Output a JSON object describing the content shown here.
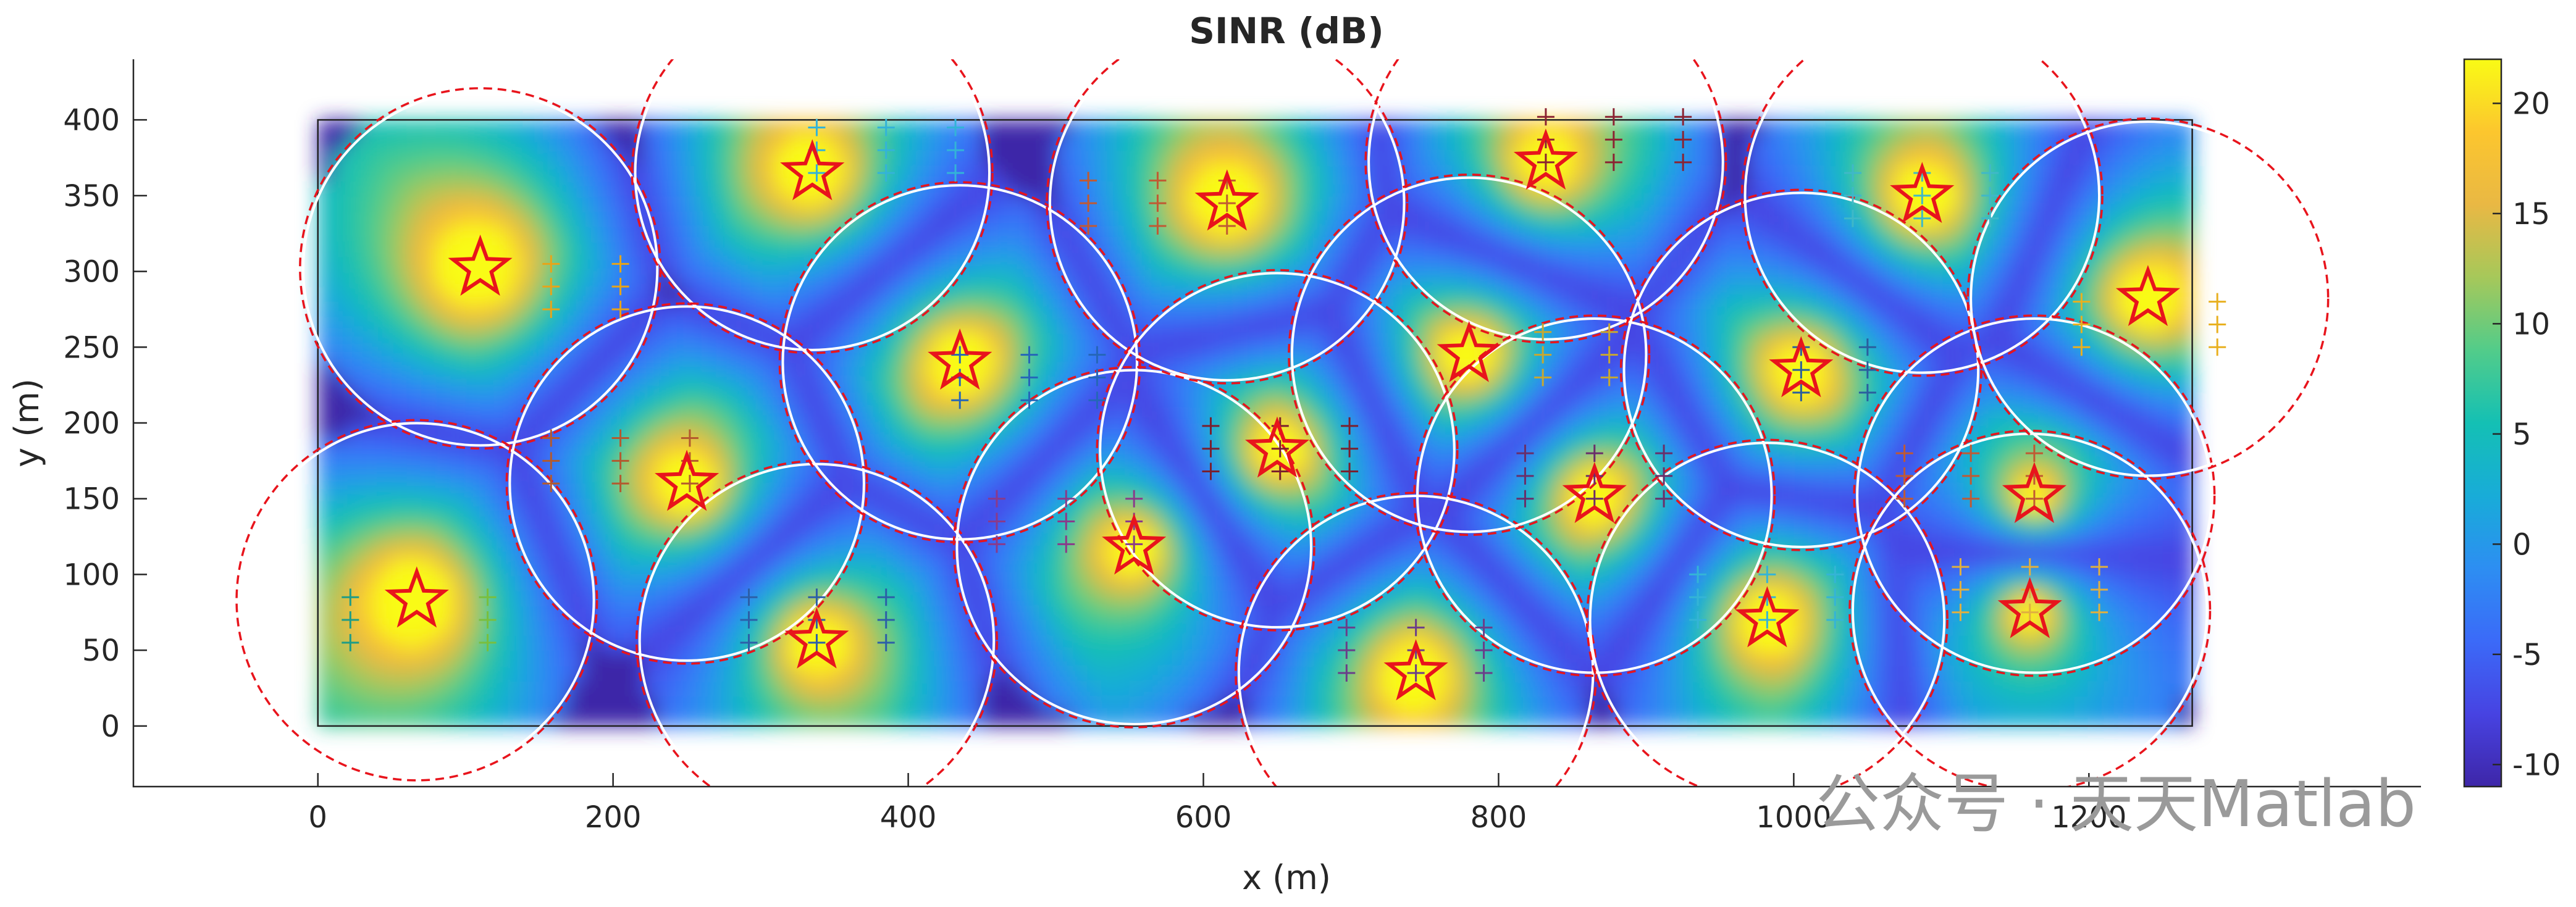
{
  "chart_data": {
    "type": "heatmap",
    "title": "SINR (dB)",
    "xlabel": "x (m)",
    "ylabel": "y (m)",
    "xlim": [
      -125,
      1425
    ],
    "ylim": [
      -40,
      440
    ],
    "xticks": [
      0,
      200,
      400,
      600,
      800,
      1000,
      1200
    ],
    "yticks": [
      0,
      50,
      100,
      150,
      200,
      250,
      300,
      350,
      400
    ],
    "area_bounds": {
      "x": [
        0,
        1270
      ],
      "y": [
        0,
        400
      ]
    },
    "colorbar": {
      "min": -11,
      "max": 22,
      "ticks": [
        -10,
        -5,
        0,
        5,
        10,
        15,
        20
      ],
      "colormap": "parula",
      "colormap_stops": [
        "#3e26a8",
        "#4743e2",
        "#3b6af8",
        "#2d8ef2",
        "#18acd8",
        "#14c0b4",
        "#52cc8a",
        "#a6c85a",
        "#e9b844",
        "#fcc62e",
        "#f9fb15"
      ]
    },
    "coverage_radius_m": 120,
    "access_points": [
      {
        "x": 110,
        "y": 302
      },
      {
        "x": 67,
        "y": 83
      },
      {
        "x": 335,
        "y": 365
      },
      {
        "x": 250,
        "y": 160
      },
      {
        "x": 338,
        "y": 56
      },
      {
        "x": 435,
        "y": 240
      },
      {
        "x": 553,
        "y": 118
      },
      {
        "x": 616,
        "y": 345
      },
      {
        "x": 650,
        "y": 182
      },
      {
        "x": 744,
        "y": 35
      },
      {
        "x": 780,
        "y": 245
      },
      {
        "x": 832,
        "y": 372
      },
      {
        "x": 865,
        "y": 152
      },
      {
        "x": 982,
        "y": 70
      },
      {
        "x": 1005,
        "y": 235
      },
      {
        "x": 1087,
        "y": 350
      },
      {
        "x": 1160,
        "y": 76
      },
      {
        "x": 1163,
        "y": 152
      },
      {
        "x": 1240,
        "y": 282
      }
    ],
    "client_groups": [
      {
        "x": 22,
        "y": [
          55,
          70,
          85
        ],
        "color": "#1e9c86"
      },
      {
        "x": 115,
        "y": [
          55,
          70,
          85
        ],
        "color": "#79bf3e"
      },
      {
        "x": 158,
        "y": [
          275,
          290,
          305
        ],
        "color": "#e8a419"
      },
      {
        "x": 205,
        "y": [
          275,
          290,
          305
        ],
        "color": "#e8a419"
      },
      {
        "x": 158,
        "y": [
          160,
          175,
          190
        ],
        "color": "#b35a2e"
      },
      {
        "x": 205,
        "y": [
          160,
          175,
          190
        ],
        "color": "#b35a2e"
      },
      {
        "x": 252,
        "y": [
          160,
          175,
          190
        ],
        "color": "#b35a2e"
      },
      {
        "x": 292,
        "y": [
          55,
          70,
          85
        ],
        "color": "#2c5fa8"
      },
      {
        "x": 338,
        "y": [
          55,
          70,
          85
        ],
        "color": "#2c5fa8"
      },
      {
        "x": 385,
        "y": [
          55,
          70,
          85
        ],
        "color": "#2c5fa8"
      },
      {
        "x": 338,
        "y": [
          365,
          380,
          395
        ],
        "color": "#33b3d8"
      },
      {
        "x": 385,
        "y": [
          365,
          380,
          395
        ],
        "color": "#33b3d8"
      },
      {
        "x": 432,
        "y": [
          365,
          380,
          395
        ],
        "color": "#33b3d8"
      },
      {
        "x": 435,
        "y": [
          215,
          230,
          245
        ],
        "color": "#2566b8"
      },
      {
        "x": 482,
        "y": [
          215,
          230,
          245
        ],
        "color": "#2566b8"
      },
      {
        "x": 528,
        "y": [
          215,
          230,
          245
        ],
        "color": "#2566b8"
      },
      {
        "x": 460,
        "y": [
          120,
          135,
          150
        ],
        "color": "#8a3a8a"
      },
      {
        "x": 507,
        "y": [
          120,
          135,
          150
        ],
        "color": "#8a3a8a"
      },
      {
        "x": 553,
        "y": [
          120,
          135,
          150
        ],
        "color": "#8a3a8a"
      },
      {
        "x": 522,
        "y": [
          330,
          345,
          360
        ],
        "color": "#c05a33"
      },
      {
        "x": 569,
        "y": [
          330,
          345,
          360
        ],
        "color": "#c05a33"
      },
      {
        "x": 616,
        "y": [
          330,
          345,
          360
        ],
        "color": "#c05a33"
      },
      {
        "x": 605,
        "y": [
          168,
          183,
          198
        ],
        "color": "#7a1f2e"
      },
      {
        "x": 652,
        "y": [
          168,
          183,
          198
        ],
        "color": "#7a1f2e"
      },
      {
        "x": 699,
        "y": [
          168,
          183,
          198
        ],
        "color": "#7a1f2e"
      },
      {
        "x": 697,
        "y": [
          35,
          50,
          65
        ],
        "color": "#6a3e8a"
      },
      {
        "x": 744,
        "y": [
          35,
          50,
          65
        ],
        "color": "#6a3e8a"
      },
      {
        "x": 790,
        "y": [
          35,
          50,
          65
        ],
        "color": "#6a3e8a"
      },
      {
        "x": 830,
        "y": [
          230,
          245,
          260
        ],
        "color": "#c8a830"
      },
      {
        "x": 875,
        "y": [
          230,
          245,
          260
        ],
        "color": "#c8a830"
      },
      {
        "x": 832,
        "y": [
          372,
          387,
          402
        ],
        "color": "#8b2232"
      },
      {
        "x": 878,
        "y": [
          372,
          387,
          402
        ],
        "color": "#8b2232"
      },
      {
        "x": 925,
        "y": [
          372,
          387,
          402
        ],
        "color": "#8b2232"
      },
      {
        "x": 818,
        "y": [
          150,
          165,
          180
        ],
        "color": "#6a2e6a"
      },
      {
        "x": 865,
        "y": [
          150,
          165,
          180
        ],
        "color": "#6a2e6a"
      },
      {
        "x": 912,
        "y": [
          150,
          165,
          180
        ],
        "color": "#6a2e6a"
      },
      {
        "x": 935,
        "y": [
          70,
          85,
          100
        ],
        "color": "#34b4d6"
      },
      {
        "x": 982,
        "y": [
          70,
          85,
          100
        ],
        "color": "#34b4d6"
      },
      {
        "x": 1028,
        "y": [
          70,
          85,
          100
        ],
        "color": "#34b4d6"
      },
      {
        "x": 1005,
        "y": [
          220,
          235,
          250
        ],
        "color": "#2a5e9e"
      },
      {
        "x": 1050,
        "y": [
          220,
          235,
          250
        ],
        "color": "#2a5e9e"
      },
      {
        "x": 1040,
        "y": [
          335,
          350,
          365
        ],
        "color": "#3fb8c8"
      },
      {
        "x": 1087,
        "y": [
          335,
          350,
          365
        ],
        "color": "#3fb8c8"
      },
      {
        "x": 1133,
        "y": [
          335,
          350,
          365
        ],
        "color": "#3fb8c8"
      },
      {
        "x": 1075,
        "y": [
          150,
          165,
          180
        ],
        "color": "#c05a33"
      },
      {
        "x": 1120,
        "y": [
          150,
          165,
          180
        ],
        "color": "#c05a33"
      },
      {
        "x": 1163,
        "y": [
          150,
          165,
          180
        ],
        "color": "#c05a33"
      },
      {
        "x": 1113,
        "y": [
          75,
          90,
          105
        ],
        "color": "#e0b040"
      },
      {
        "x": 1160,
        "y": [
          75,
          90,
          105
        ],
        "color": "#e0b040"
      },
      {
        "x": 1207,
        "y": [
          75,
          90,
          105
        ],
        "color": "#e0b040"
      },
      {
        "x": 1195,
        "y": [
          250,
          265,
          280
        ],
        "color": "#e8b020"
      },
      {
        "x": 1287,
        "y": [
          250,
          265,
          280
        ],
        "color": "#e8b020"
      }
    ]
  },
  "watermark": {
    "text": "公众号 · 天天Matlab"
  }
}
